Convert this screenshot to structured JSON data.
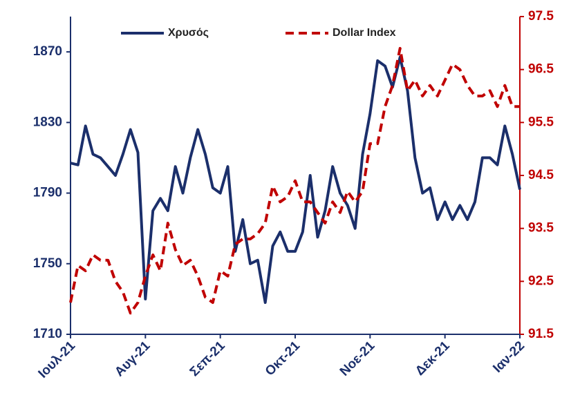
{
  "chart_data": {
    "type": "line",
    "categories": [
      "Ιουλ-21",
      null,
      null,
      null,
      null,
      null,
      null,
      null,
      null,
      null,
      "Αυγ-21",
      null,
      null,
      null,
      null,
      null,
      null,
      null,
      null,
      null,
      "Σεπ-21",
      null,
      null,
      null,
      null,
      null,
      null,
      null,
      null,
      null,
      "Οκτ-21",
      null,
      null,
      null,
      null,
      null,
      null,
      null,
      null,
      null,
      "Νοε-21",
      null,
      null,
      null,
      null,
      null,
      null,
      null,
      null,
      null,
      "Δεκ-21",
      null,
      null,
      null,
      null,
      null,
      null,
      null,
      null,
      null,
      "Ιαν-22"
    ],
    "series": [
      {
        "name": "Χρυσός",
        "color": "#1b2f6b",
        "axis": "y",
        "dash": false,
        "values": [
          1807,
          1806,
          1828,
          1812,
          1810,
          1805,
          1800,
          1812,
          1826,
          1813,
          1730,
          1780,
          1787,
          1780,
          1805,
          1790,
          1810,
          1826,
          1812,
          1793,
          1790,
          1805,
          1757,
          1775,
          1750,
          1752,
          1728,
          1760,
          1768,
          1757,
          1757,
          1768,
          1800,
          1765,
          1780,
          1805,
          1790,
          1783,
          1770,
          1812,
          1835,
          1865,
          1862,
          1850,
          1867,
          1848,
          1810,
          1790,
          1793,
          1775,
          1785,
          1775,
          1783,
          1775,
          1785,
          1810,
          1810,
          1806,
          1828,
          1812,
          1792
        ]
      },
      {
        "name": "Dollar Index",
        "color": "#c00000",
        "axis": "y2",
        "dash": true,
        "values": [
          92.1,
          92.8,
          92.7,
          93.0,
          92.9,
          92.9,
          92.5,
          92.3,
          91.9,
          92.1,
          92.6,
          93.0,
          92.7,
          93.6,
          93.1,
          92.8,
          92.9,
          92.6,
          92.2,
          92.1,
          92.7,
          92.6,
          93.2,
          93.3,
          93.3,
          93.4,
          93.6,
          94.3,
          94.0,
          94.1,
          94.4,
          94.0,
          94.0,
          93.8,
          93.6,
          94.0,
          93.8,
          94.2,
          94.0,
          94.2,
          95.1,
          95.1,
          95.8,
          96.2,
          96.9,
          96.1,
          96.3,
          96.0,
          96.2,
          96.0,
          96.3,
          96.6,
          96.5,
          96.2,
          96.0,
          96.0,
          96.1,
          95.8,
          96.2,
          95.8,
          95.8
        ]
      }
    ],
    "ylim": [
      1710,
      1890
    ],
    "yticks": [
      1710,
      1750,
      1790,
      1830,
      1870
    ],
    "y2lim": [
      91.5,
      97.5
    ],
    "y2ticks": [
      91.5,
      92.5,
      93.5,
      94.5,
      95.5,
      96.5,
      97.5
    ],
    "y_color": "#1b2f6b",
    "y2_color": "#c00000",
    "legend": "top",
    "grid": false
  }
}
